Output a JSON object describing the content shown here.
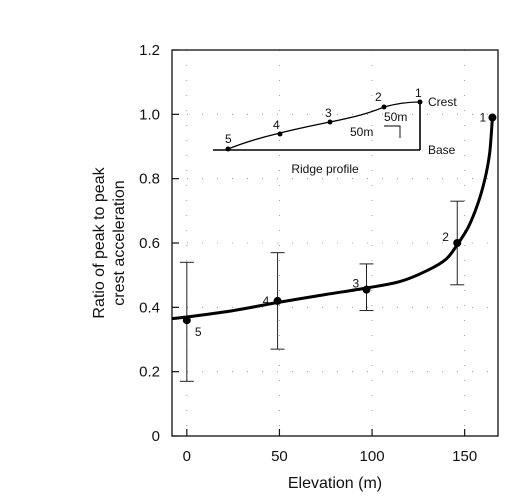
{
  "chart_data": {
    "type": "line",
    "xlabel": "Elevation (m)",
    "ylabel_line1": "Ratio of peak to peak",
    "ylabel_line2": "crest acceleration",
    "xlim": [
      -8,
      168
    ],
    "ylim": [
      0,
      1.2
    ],
    "x_ticks": [
      0,
      50,
      100,
      150
    ],
    "x_tick_labels": [
      "0",
      "50",
      "100",
      "150"
    ],
    "y_ticks": [
      0,
      0.2,
      0.4,
      0.6,
      0.8,
      1.0,
      1.2
    ],
    "y_tick_labels": [
      "0",
      "0.2",
      "0.4",
      "0.6",
      "0.8",
      "1.0",
      "1.2"
    ],
    "grid": "dotted",
    "points": [
      {
        "label": "5",
        "x": 0,
        "y": 0.36,
        "err_low": 0.17,
        "err_high": 0.54
      },
      {
        "label": "4",
        "x": 49,
        "y": 0.42,
        "err_low": 0.27,
        "err_high": 0.57
      },
      {
        "label": "3",
        "x": 97,
        "y": 0.455,
        "err_low": 0.39,
        "err_high": 0.535
      },
      {
        "label": "2",
        "x": 146,
        "y": 0.6,
        "err_low": 0.47,
        "err_high": 0.73
      },
      {
        "label": "1",
        "x": 165,
        "y": 0.99,
        "err_low": null,
        "err_high": null
      }
    ],
    "curve": [
      [
        -8,
        0.365
      ],
      [
        0,
        0.37
      ],
      [
        25,
        0.39
      ],
      [
        49,
        0.415
      ],
      [
        75,
        0.44
      ],
      [
        97,
        0.46
      ],
      [
        115,
        0.48
      ],
      [
        130,
        0.515
      ],
      [
        140,
        0.55
      ],
      [
        146,
        0.595
      ],
      [
        152,
        0.65
      ],
      [
        157,
        0.72
      ],
      [
        161,
        0.8
      ],
      [
        163.5,
        0.88
      ],
      [
        165,
        0.99
      ]
    ]
  },
  "inset": {
    "title": "Ridge profile",
    "crest_label": "Crest",
    "base_label": "Base",
    "scale_horizontal": "50m",
    "scale_vertical": "50m",
    "point_labels": [
      "1",
      "2",
      "3",
      "4",
      "5"
    ]
  }
}
